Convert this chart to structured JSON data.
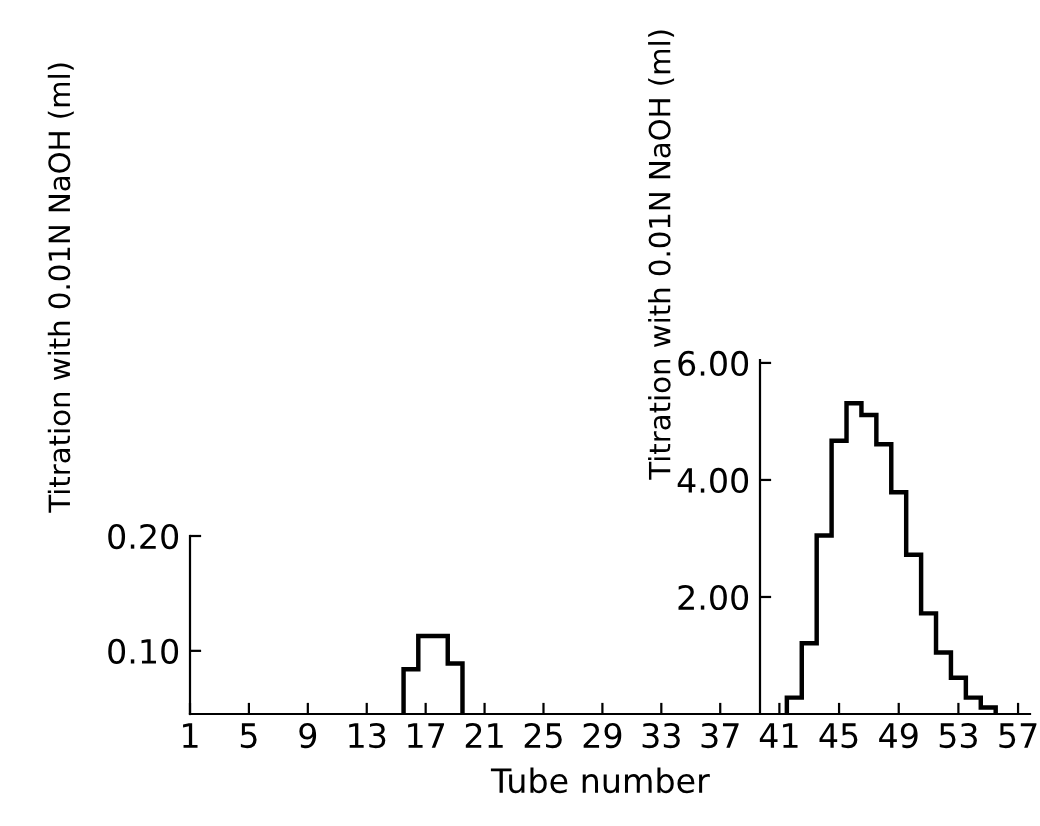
{
  "chart_data": [
    {
      "type": "histogram",
      "xlabel": "Tube number",
      "ylabel": "Titration with 0.01N NaOH (ml)",
      "bins": [
        15.5,
        16.5,
        17.5,
        18.5,
        19.5
      ],
      "values": [
        0.084,
        0.113,
        0.113,
        0.089
      ],
      "color": "#000000",
      "xlim": [
        1,
        39.7
      ],
      "xticks": [
        1,
        5,
        9,
        13,
        17,
        21,
        25,
        29,
        33,
        37
      ],
      "ylim": [
        0.045,
        0.2
      ],
      "yticks": [
        {
          "value": 0.1,
          "label": "0.10"
        },
        {
          "value": 0.2,
          "label": "0.20"
        }
      ],
      "grid": false
    },
    {
      "type": "histogram",
      "ylabel": "Titration with 0.01N NaOH (ml)",
      "bins": [
        41.5,
        42.5,
        43.5,
        44.5,
        45.5,
        46.5,
        47.5,
        48.5,
        49.5,
        50.5,
        51.5,
        52.5,
        53.5,
        54.5,
        55.5
      ],
      "values": [
        0.28,
        1.21,
        3.05,
        4.67,
        5.31,
        5.11,
        4.61,
        3.79,
        2.72,
        1.72,
        1.05,
        0.62,
        0.28,
        0.11
      ],
      "color": "#000000",
      "xlim": [
        39.7,
        57.8
      ],
      "xticks": [
        41,
        45,
        49,
        53,
        57
      ],
      "ylim": [
        0,
        6.05
      ],
      "yticks": [
        {
          "value": 2,
          "label": "2.00"
        },
        {
          "value": 4,
          "label": "4.00"
        },
        {
          "value": 6,
          "label": "6.00"
        }
      ],
      "grid": false
    }
  ]
}
